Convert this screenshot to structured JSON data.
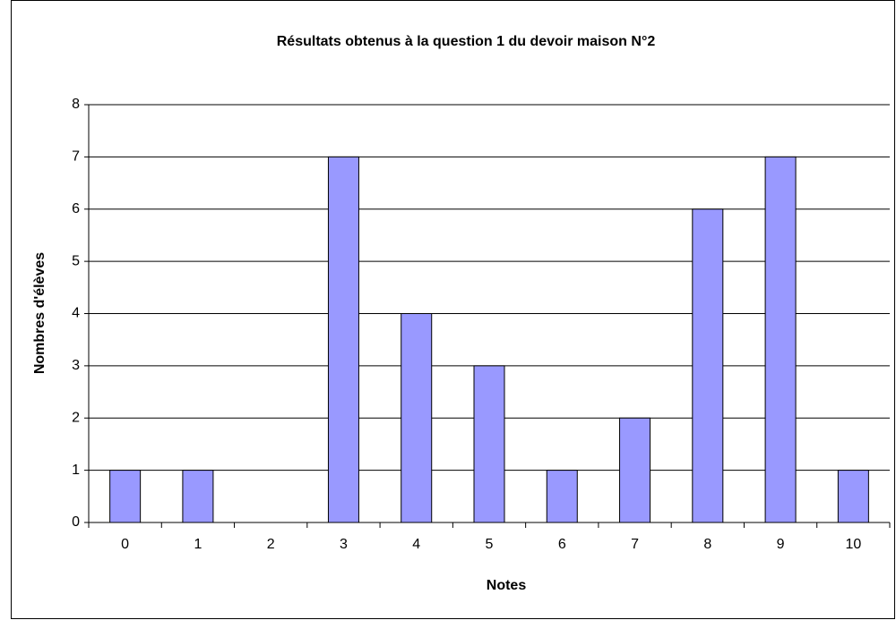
{
  "chart_data": {
    "type": "bar",
    "title": "Résultats obtenus à la question 1 du devoir maison N°2",
    "x_label": "Notes",
    "y_label": "Nombres d'élèves",
    "categories": [
      "0",
      "1",
      "2",
      "3",
      "4",
      "5",
      "6",
      "7",
      "8",
      "9",
      "10"
    ],
    "values": [
      1,
      1,
      0,
      7,
      4,
      3,
      1,
      2,
      6,
      7,
      1
    ],
    "color": "#9999ff",
    "ylim": [
      0,
      8
    ],
    "yticks": [
      0,
      1,
      2,
      3,
      4,
      5,
      6,
      7,
      8
    ],
    "grid": true
  }
}
